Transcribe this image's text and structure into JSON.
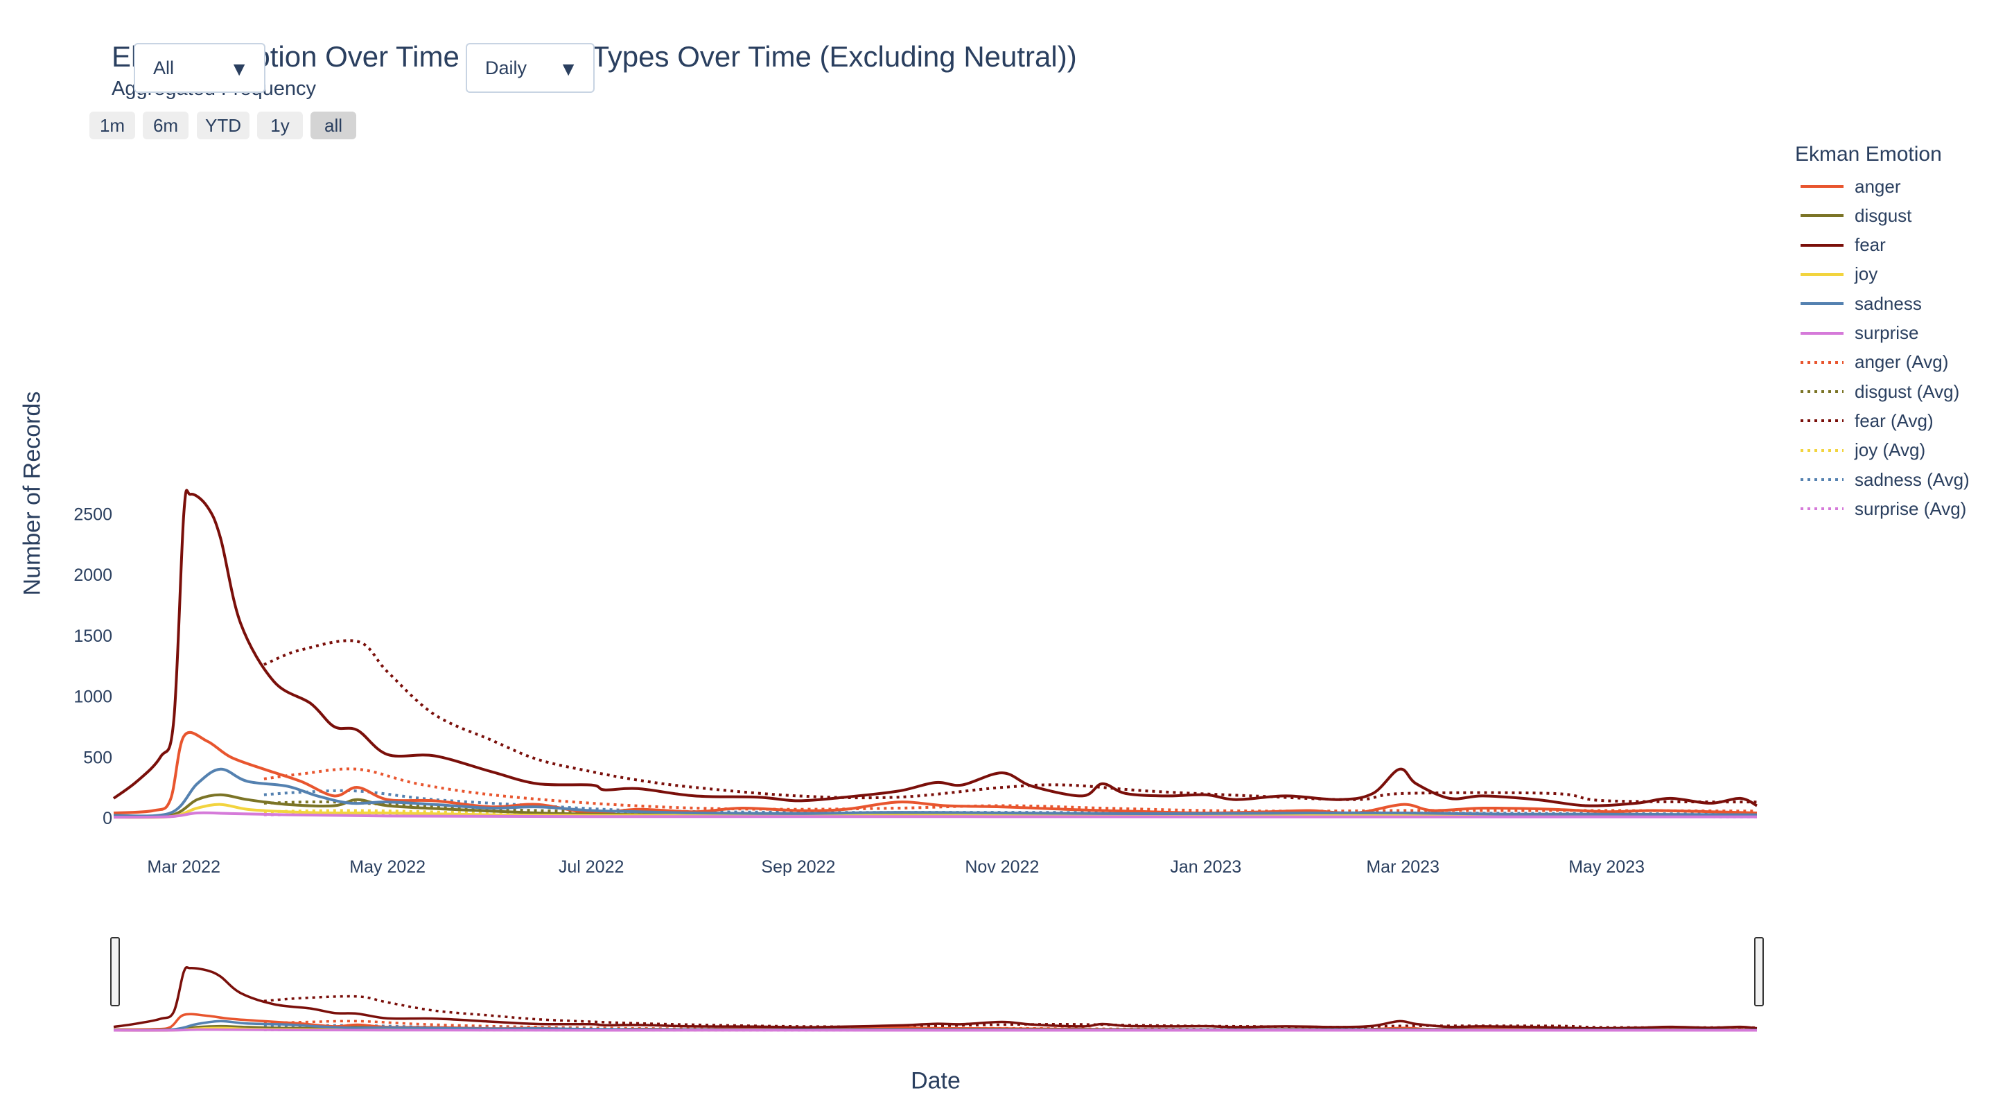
{
  "title": "Ekman Emotion Over Time (Emotion Types Over Time (Excluding Neutral))",
  "subtitle": "Aggregated Frequency",
  "filter_dropdown": {
    "value": "All"
  },
  "frequency_dropdown": {
    "value": "Daily"
  },
  "range_buttons": [
    "1m",
    "6m",
    "YTD",
    "1y",
    "all"
  ],
  "range_active": "all",
  "colors": {
    "anger": "#e8552e",
    "disgust": "#7b7426",
    "fear": "#7a0f0a",
    "joy": "#f2d43e",
    "sadness": "#5481b0",
    "surprise": "#d57ad9"
  },
  "chart_data": {
    "type": "line",
    "xlabel": "Date",
    "ylabel": "Number of Records",
    "x_ticks": [
      "Mar 2022",
      "May 2022",
      "Jul 2022",
      "Sep 2022",
      "Nov 2022",
      "Jan 2023",
      "Mar 2023",
      "May 2023"
    ],
    "y_ticks": [
      0,
      500,
      1000,
      1500,
      2000,
      2500
    ],
    "xlim": [
      "2022-02-08",
      "2023-06-15"
    ],
    "ylim": [
      -50,
      2750
    ],
    "legend_title": "Ekman Emotion",
    "legend_position": "right",
    "grid": false,
    "series": [
      {
        "name": "anger",
        "emotion": "anger",
        "style": "solid",
        "points": [
          [
            "2022-02-08",
            40
          ],
          [
            "2022-02-20",
            60
          ],
          [
            "2022-02-25",
            150
          ],
          [
            "2022-03-01",
            670
          ],
          [
            "2022-03-08",
            630
          ],
          [
            "2022-03-15",
            500
          ],
          [
            "2022-03-25",
            400
          ],
          [
            "2022-04-05",
            300
          ],
          [
            "2022-04-15",
            180
          ],
          [
            "2022-04-22",
            250
          ],
          [
            "2022-05-01",
            150
          ],
          [
            "2022-05-15",
            140
          ],
          [
            "2022-06-01",
            90
          ],
          [
            "2022-06-15",
            110
          ],
          [
            "2022-07-01",
            40
          ],
          [
            "2022-07-15",
            70
          ],
          [
            "2022-08-01",
            50
          ],
          [
            "2022-08-15",
            80
          ],
          [
            "2022-09-01",
            60
          ],
          [
            "2022-09-15",
            70
          ],
          [
            "2022-10-01",
            130
          ],
          [
            "2022-10-15",
            100
          ],
          [
            "2022-11-01",
            90
          ],
          [
            "2022-11-20",
            70
          ],
          [
            "2022-12-01",
            60
          ],
          [
            "2022-12-15",
            50
          ],
          [
            "2023-01-01",
            40
          ],
          [
            "2023-01-20",
            50
          ],
          [
            "2023-02-01",
            60
          ],
          [
            "2023-02-15",
            40
          ],
          [
            "2023-03-01",
            110
          ],
          [
            "2023-03-10",
            60
          ],
          [
            "2023-03-25",
            80
          ],
          [
            "2023-04-15",
            70
          ],
          [
            "2023-05-01",
            50
          ],
          [
            "2023-05-15",
            60
          ],
          [
            "2023-06-01",
            50
          ],
          [
            "2023-06-15",
            40
          ]
        ]
      },
      {
        "name": "disgust",
        "emotion": "disgust",
        "style": "solid",
        "points": [
          [
            "2022-02-08",
            10
          ],
          [
            "2022-02-25",
            20
          ],
          [
            "2022-03-05",
            150
          ],
          [
            "2022-03-12",
            190
          ],
          [
            "2022-03-20",
            150
          ],
          [
            "2022-04-01",
            110
          ],
          [
            "2022-04-15",
            100
          ],
          [
            "2022-04-22",
            150
          ],
          [
            "2022-05-01",
            100
          ],
          [
            "2022-05-20",
            70
          ],
          [
            "2022-06-15",
            40
          ],
          [
            "2022-07-01",
            30
          ],
          [
            "2022-08-01",
            25
          ],
          [
            "2022-09-01",
            30
          ],
          [
            "2022-10-01",
            35
          ],
          [
            "2022-11-01",
            30
          ],
          [
            "2022-12-01",
            25
          ],
          [
            "2023-01-01",
            25
          ],
          [
            "2023-02-01",
            25
          ],
          [
            "2023-03-01",
            30
          ],
          [
            "2023-04-01",
            25
          ],
          [
            "2023-05-01",
            20
          ],
          [
            "2023-06-15",
            20
          ]
        ]
      },
      {
        "name": "fear",
        "emotion": "fear",
        "style": "solid",
        "points": [
          [
            "2022-02-08",
            160
          ],
          [
            "2022-02-15",
            300
          ],
          [
            "2022-02-22",
            500
          ],
          [
            "2022-02-26",
            800
          ],
          [
            "2022-03-01",
            2500
          ],
          [
            "2022-03-03",
            2660
          ],
          [
            "2022-03-08",
            2560
          ],
          [
            "2022-03-12",
            2300
          ],
          [
            "2022-03-18",
            1600
          ],
          [
            "2022-03-28",
            1120
          ],
          [
            "2022-04-08",
            940
          ],
          [
            "2022-04-15",
            750
          ],
          [
            "2022-04-22",
            720
          ],
          [
            "2022-05-01",
            520
          ],
          [
            "2022-05-15",
            510
          ],
          [
            "2022-06-01",
            380
          ],
          [
            "2022-06-15",
            280
          ],
          [
            "2022-07-01",
            270
          ],
          [
            "2022-07-05",
            230
          ],
          [
            "2022-07-15",
            240
          ],
          [
            "2022-08-01",
            180
          ],
          [
            "2022-08-20",
            170
          ],
          [
            "2022-09-01",
            140
          ],
          [
            "2022-09-15",
            170
          ],
          [
            "2022-10-01",
            220
          ],
          [
            "2022-10-12",
            290
          ],
          [
            "2022-10-20",
            270
          ],
          [
            "2022-11-01",
            370
          ],
          [
            "2022-11-10",
            260
          ],
          [
            "2022-11-25",
            180
          ],
          [
            "2022-12-01",
            280
          ],
          [
            "2022-12-08",
            200
          ],
          [
            "2022-12-20",
            180
          ],
          [
            "2023-01-01",
            190
          ],
          [
            "2023-01-10",
            150
          ],
          [
            "2023-01-25",
            180
          ],
          [
            "2023-02-10",
            150
          ],
          [
            "2023-02-20",
            200
          ],
          [
            "2023-02-28",
            400
          ],
          [
            "2023-03-05",
            280
          ],
          [
            "2023-03-15",
            160
          ],
          [
            "2023-03-25",
            180
          ],
          [
            "2023-04-10",
            150
          ],
          [
            "2023-04-25",
            100
          ],
          [
            "2023-05-10",
            120
          ],
          [
            "2023-05-20",
            160
          ],
          [
            "2023-06-01",
            120
          ],
          [
            "2023-06-10",
            160
          ],
          [
            "2023-06-15",
            100
          ]
        ]
      },
      {
        "name": "joy",
        "emotion": "joy",
        "style": "solid",
        "points": [
          [
            "2022-02-08",
            5
          ],
          [
            "2022-02-25",
            10
          ],
          [
            "2022-03-05",
            80
          ],
          [
            "2022-03-12",
            110
          ],
          [
            "2022-03-20",
            70
          ],
          [
            "2022-04-01",
            50
          ],
          [
            "2022-04-15",
            40
          ],
          [
            "2022-05-01",
            40
          ],
          [
            "2022-06-01",
            25
          ],
          [
            "2022-07-01",
            20
          ],
          [
            "2022-09-01",
            20
          ],
          [
            "2022-11-01",
            20
          ],
          [
            "2023-01-01",
            15
          ],
          [
            "2023-03-01",
            20
          ],
          [
            "2023-05-01",
            15
          ],
          [
            "2023-06-15",
            15
          ]
        ]
      },
      {
        "name": "sadness",
        "emotion": "sadness",
        "style": "solid",
        "points": [
          [
            "2022-02-08",
            20
          ],
          [
            "2022-02-25",
            40
          ],
          [
            "2022-03-05",
            280
          ],
          [
            "2022-03-12",
            400
          ],
          [
            "2022-03-20",
            300
          ],
          [
            "2022-04-01",
            260
          ],
          [
            "2022-04-10",
            180
          ],
          [
            "2022-04-20",
            120
          ],
          [
            "2022-05-01",
            130
          ],
          [
            "2022-05-15",
            110
          ],
          [
            "2022-06-01",
            80
          ],
          [
            "2022-06-15",
            90
          ],
          [
            "2022-07-01",
            60
          ],
          [
            "2022-07-15",
            50
          ],
          [
            "2022-08-01",
            40
          ],
          [
            "2022-09-01",
            35
          ],
          [
            "2022-10-01",
            45
          ],
          [
            "2022-11-01",
            40
          ],
          [
            "2022-12-01",
            35
          ],
          [
            "2023-01-01",
            35
          ],
          [
            "2023-02-01",
            40
          ],
          [
            "2023-03-01",
            40
          ],
          [
            "2023-04-01",
            30
          ],
          [
            "2023-05-01",
            30
          ],
          [
            "2023-06-15",
            25
          ]
        ]
      },
      {
        "name": "surprise",
        "emotion": "surprise",
        "style": "solid",
        "points": [
          [
            "2022-02-08",
            5
          ],
          [
            "2022-02-25",
            10
          ],
          [
            "2022-03-05",
            40
          ],
          [
            "2022-03-15",
            35
          ],
          [
            "2022-04-01",
            25
          ],
          [
            "2022-05-01",
            15
          ],
          [
            "2022-07-01",
            10
          ],
          [
            "2022-10-01",
            10
          ],
          [
            "2023-01-01",
            8
          ],
          [
            "2023-06-15",
            8
          ]
        ]
      },
      {
        "name": "anger (Avg)",
        "emotion": "anger",
        "style": "dot",
        "points": [
          [
            "2022-03-25",
            320
          ],
          [
            "2022-04-05",
            360
          ],
          [
            "2022-04-22",
            400
          ],
          [
            "2022-05-10",
            280
          ],
          [
            "2022-06-01",
            190
          ],
          [
            "2022-07-01",
            120
          ],
          [
            "2022-08-01",
            80
          ],
          [
            "2022-09-01",
            70
          ],
          [
            "2022-10-01",
            80
          ],
          [
            "2022-11-01",
            100
          ],
          [
            "2022-12-01",
            80
          ],
          [
            "2023-01-01",
            60
          ],
          [
            "2023-02-01",
            55
          ],
          [
            "2023-03-01",
            60
          ],
          [
            "2023-04-01",
            60
          ],
          [
            "2023-05-01",
            60
          ],
          [
            "2023-06-15",
            55
          ]
        ]
      },
      {
        "name": "disgust (Avg)",
        "emotion": "disgust",
        "style": "dot",
        "points": [
          [
            "2022-03-25",
            120
          ],
          [
            "2022-04-15",
            130
          ],
          [
            "2022-05-15",
            90
          ],
          [
            "2022-06-15",
            60
          ],
          [
            "2022-08-01",
            40
          ],
          [
            "2022-10-01",
            35
          ],
          [
            "2022-12-01",
            30
          ],
          [
            "2023-02-01",
            28
          ],
          [
            "2023-04-01",
            28
          ],
          [
            "2023-06-15",
            25
          ]
        ]
      },
      {
        "name": "fear (Avg)",
        "emotion": "fear",
        "style": "dot",
        "points": [
          [
            "2022-03-25",
            1260
          ],
          [
            "2022-04-05",
            1380
          ],
          [
            "2022-04-22",
            1450
          ],
          [
            "2022-05-01",
            1200
          ],
          [
            "2022-05-15",
            850
          ],
          [
            "2022-06-01",
            640
          ],
          [
            "2022-06-15",
            480
          ],
          [
            "2022-07-01",
            380
          ],
          [
            "2022-07-15",
            310
          ],
          [
            "2022-08-01",
            250
          ],
          [
            "2022-09-01",
            180
          ],
          [
            "2022-10-01",
            170
          ],
          [
            "2022-11-01",
            250
          ],
          [
            "2022-11-20",
            270
          ],
          [
            "2022-12-15",
            220
          ],
          [
            "2023-01-15",
            180
          ],
          [
            "2023-02-15",
            150
          ],
          [
            "2023-03-01",
            200
          ],
          [
            "2023-04-15",
            200
          ],
          [
            "2023-05-01",
            140
          ],
          [
            "2023-06-15",
            130
          ]
        ]
      },
      {
        "name": "joy (Avg)",
        "emotion": "joy",
        "style": "dot",
        "points": [
          [
            "2022-03-25",
            50
          ],
          [
            "2022-04-22",
            60
          ],
          [
            "2022-06-01",
            40
          ],
          [
            "2022-08-01",
            25
          ],
          [
            "2022-11-01",
            20
          ],
          [
            "2023-03-01",
            20
          ],
          [
            "2023-06-15",
            18
          ]
        ]
      },
      {
        "name": "sadness (Avg)",
        "emotion": "sadness",
        "style": "dot",
        "points": [
          [
            "2022-03-25",
            190
          ],
          [
            "2022-04-05",
            210
          ],
          [
            "2022-04-22",
            220
          ],
          [
            "2022-05-15",
            150
          ],
          [
            "2022-06-15",
            100
          ],
          [
            "2022-07-15",
            60
          ],
          [
            "2022-09-01",
            45
          ],
          [
            "2022-11-01",
            45
          ],
          [
            "2023-01-01",
            40
          ],
          [
            "2023-03-01",
            40
          ],
          [
            "2023-06-15",
            30
          ]
        ]
      },
      {
        "name": "surprise (Avg)",
        "emotion": "surprise",
        "style": "dot",
        "points": [
          [
            "2022-03-25",
            25
          ],
          [
            "2022-05-01",
            25
          ],
          [
            "2022-07-01",
            15
          ],
          [
            "2022-10-01",
            12
          ],
          [
            "2023-01-01",
            10
          ],
          [
            "2023-06-15",
            8
          ]
        ]
      }
    ]
  }
}
